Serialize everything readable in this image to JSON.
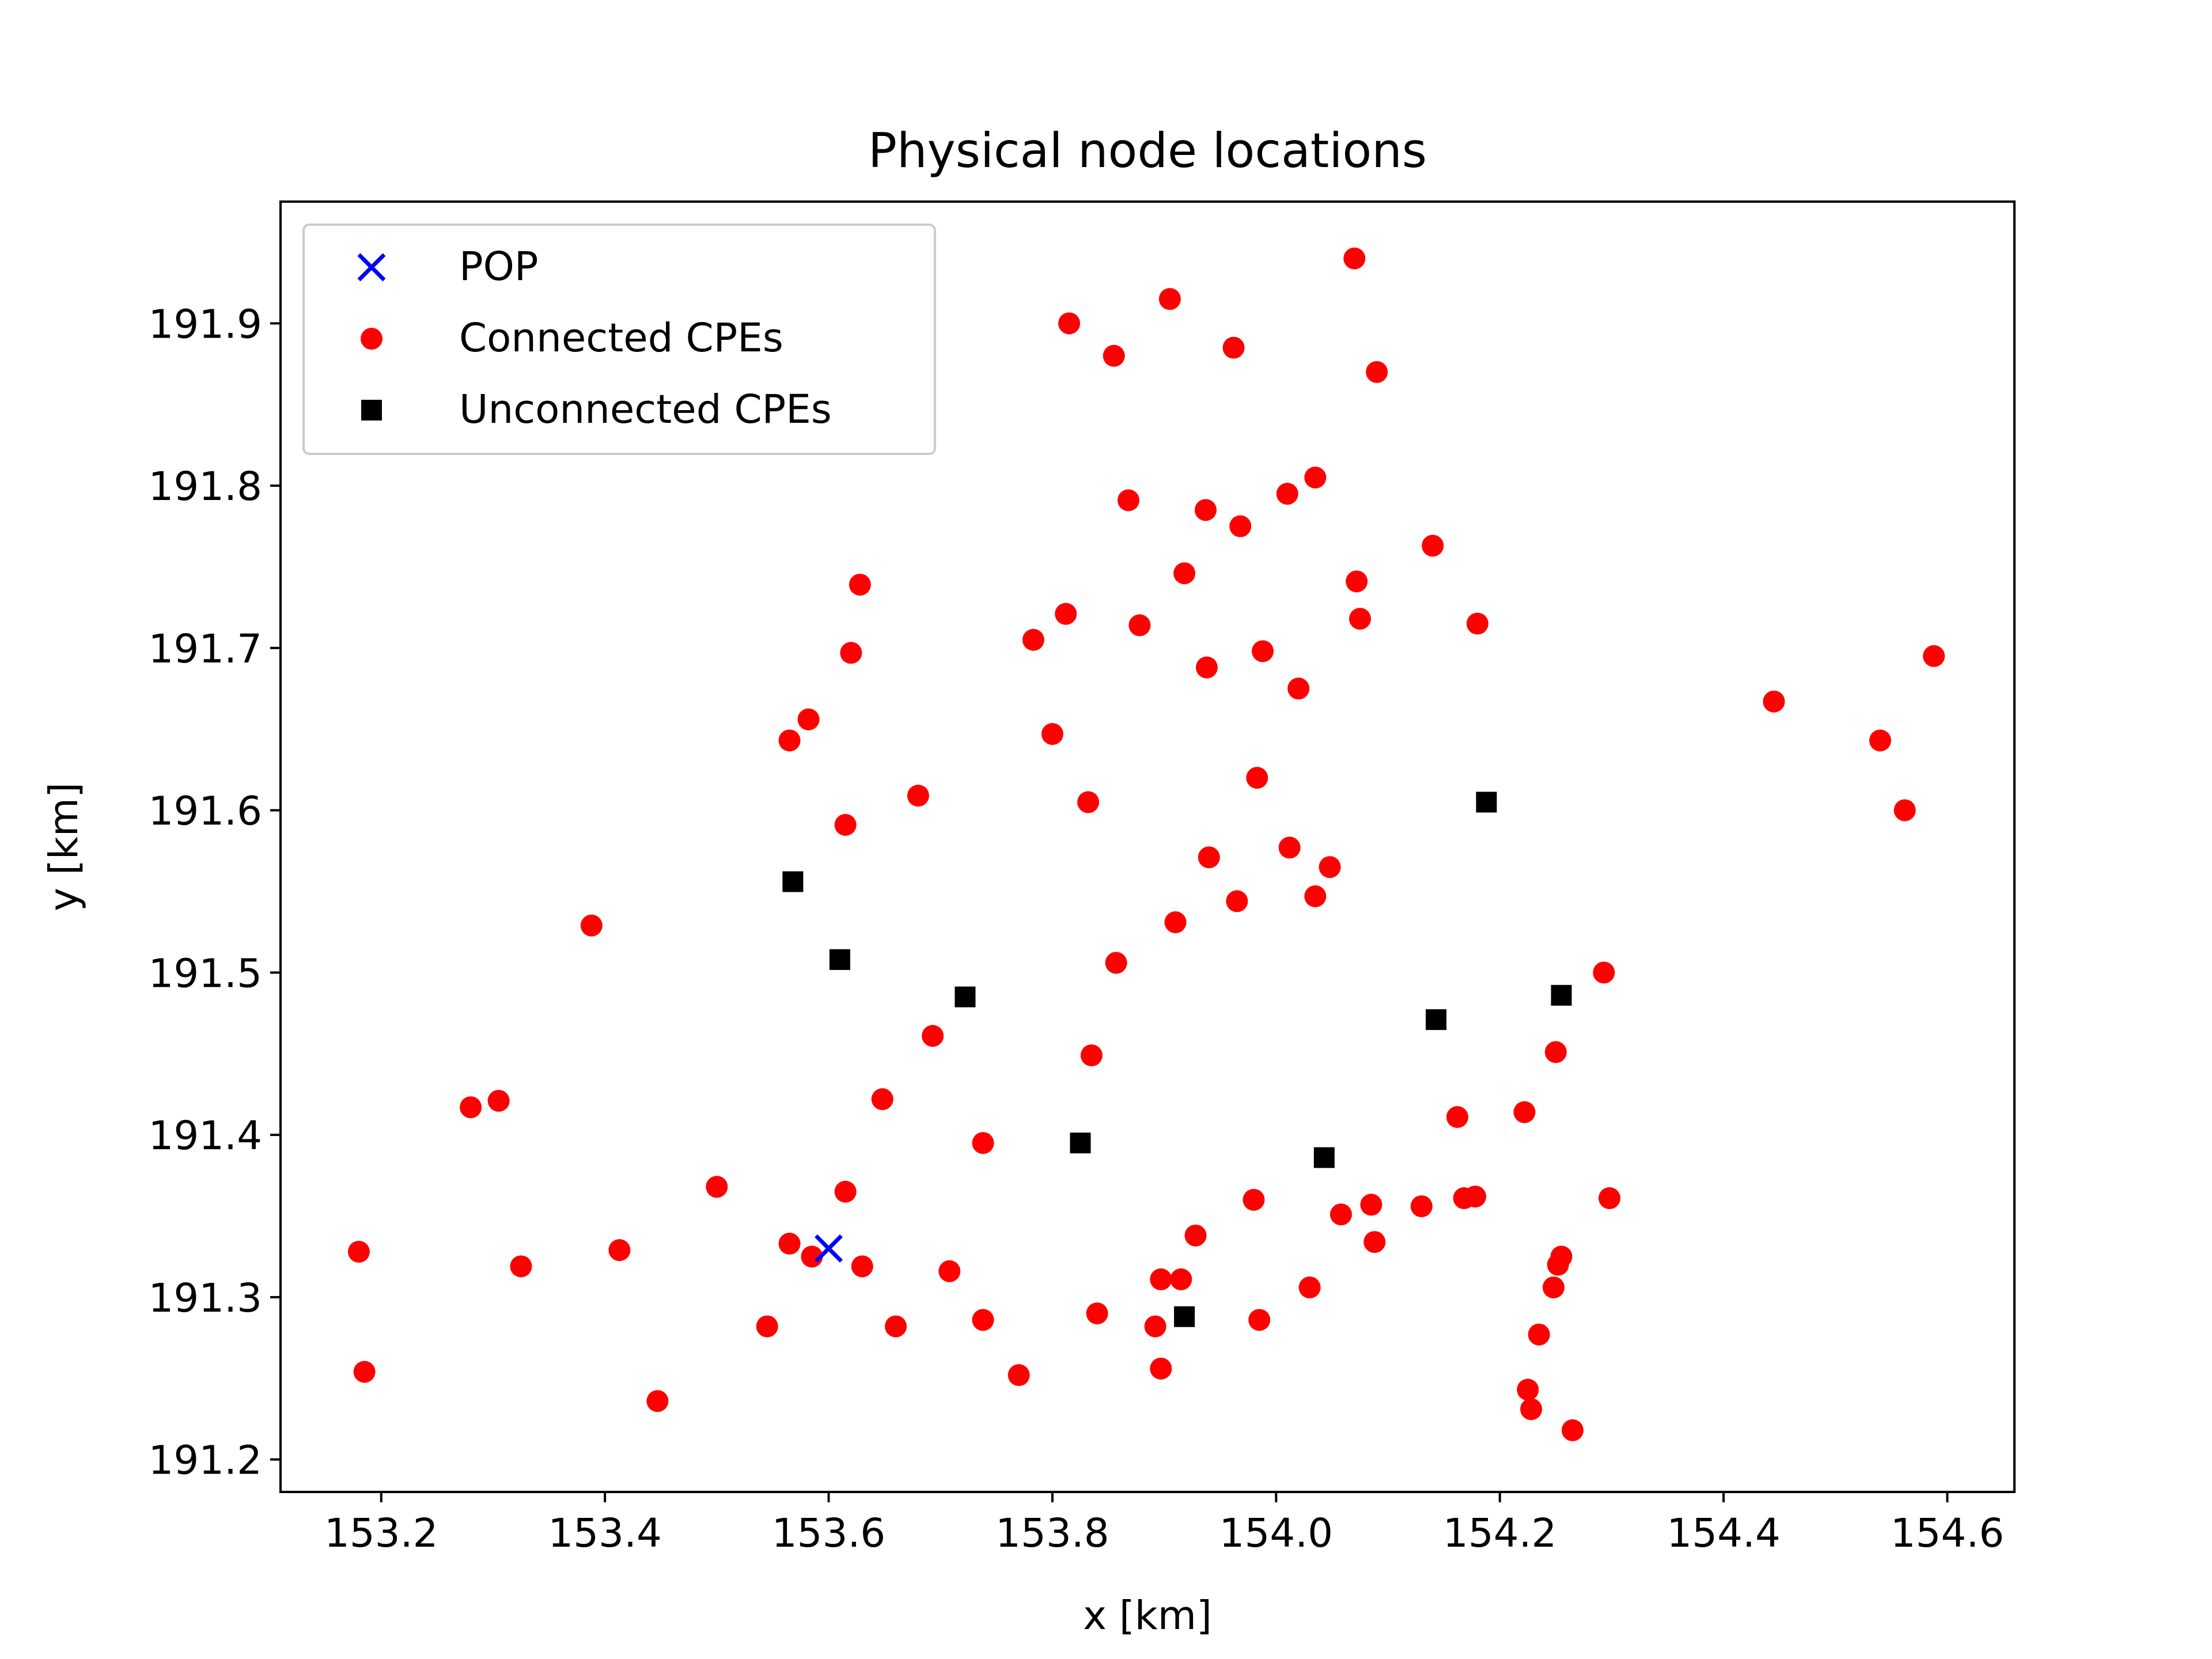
{
  "chart_data": {
    "type": "scatter",
    "title": "Physical node locations",
    "xlabel": "x [km]",
    "ylabel": "y [km]",
    "xlim": [
      153.11,
      154.66
    ],
    "ylim": [
      191.18,
      191.975
    ],
    "xticks": [
      153.2,
      153.4,
      153.6,
      153.8,
      154.0,
      154.2,
      154.4,
      154.6
    ],
    "yticks": [
      191.2,
      191.3,
      191.4,
      191.5,
      191.6,
      191.7,
      191.8,
      191.9
    ],
    "xtick_labels": [
      "153.2",
      "153.4",
      "153.6",
      "153.8",
      "154.0",
      "154.2",
      "154.4",
      "154.6"
    ],
    "ytick_labels": [
      "191.2",
      "191.3",
      "191.4",
      "191.5",
      "191.6",
      "191.7",
      "191.8",
      "191.9"
    ],
    "grid": false,
    "legend_position": "top-left",
    "series": [
      {
        "name": "POP",
        "marker": "x",
        "color": "#0000ff",
        "points": [
          [
            153.6,
            191.33
          ]
        ]
      },
      {
        "name": "Connected CPEs",
        "marker": "circle",
        "color": "#ff0000",
        "points": [
          [
            153.18,
            191.328
          ],
          [
            153.185,
            191.254
          ],
          [
            153.28,
            191.417
          ],
          [
            153.305,
            191.421
          ],
          [
            153.325,
            191.319
          ],
          [
            153.388,
            191.529
          ],
          [
            153.413,
            191.329
          ],
          [
            153.447,
            191.236
          ],
          [
            153.5,
            191.368
          ],
          [
            153.545,
            191.282
          ],
          [
            153.565,
            191.643
          ],
          [
            153.565,
            191.333
          ],
          [
            153.582,
            191.656
          ],
          [
            153.585,
            191.325
          ],
          [
            153.615,
            191.591
          ],
          [
            153.615,
            191.365
          ],
          [
            153.62,
            191.697
          ],
          [
            153.628,
            191.739
          ],
          [
            153.63,
            191.319
          ],
          [
            153.648,
            191.422
          ],
          [
            153.66,
            191.282
          ],
          [
            153.68,
            191.609
          ],
          [
            153.693,
            191.461
          ],
          [
            153.708,
            191.316
          ],
          [
            153.738,
            191.395
          ],
          [
            153.738,
            191.286
          ],
          [
            153.77,
            191.252
          ],
          [
            153.783,
            191.705
          ],
          [
            153.8,
            191.647
          ],
          [
            153.812,
            191.721
          ],
          [
            153.815,
            191.9
          ],
          [
            153.832,
            191.605
          ],
          [
            153.835,
            191.449
          ],
          [
            153.84,
            191.29
          ],
          [
            153.855,
            191.88
          ],
          [
            153.857,
            191.506
          ],
          [
            153.868,
            191.791
          ],
          [
            153.878,
            191.714
          ],
          [
            153.892,
            191.282
          ],
          [
            153.897,
            191.311
          ],
          [
            153.897,
            191.256
          ],
          [
            153.905,
            191.915
          ],
          [
            153.91,
            191.531
          ],
          [
            153.915,
            191.311
          ],
          [
            153.918,
            191.746
          ],
          [
            153.928,
            191.338
          ],
          [
            153.937,
            191.785
          ],
          [
            153.938,
            191.688
          ],
          [
            153.94,
            191.571
          ],
          [
            153.962,
            191.885
          ],
          [
            153.965,
            191.544
          ],
          [
            153.968,
            191.775
          ],
          [
            153.98,
            191.36
          ],
          [
            153.983,
            191.62
          ],
          [
            153.985,
            191.286
          ],
          [
            153.988,
            191.698
          ],
          [
            154.01,
            191.795
          ],
          [
            154.012,
            191.577
          ],
          [
            154.02,
            191.675
          ],
          [
            154.03,
            191.306
          ],
          [
            154.035,
            191.805
          ],
          [
            154.035,
            191.547
          ],
          [
            154.048,
            191.565
          ],
          [
            154.058,
            191.351
          ],
          [
            154.07,
            191.94
          ],
          [
            154.072,
            191.741
          ],
          [
            154.075,
            191.718
          ],
          [
            154.085,
            191.357
          ],
          [
            154.088,
            191.334
          ],
          [
            154.09,
            191.87
          ],
          [
            154.13,
            191.356
          ],
          [
            154.14,
            191.763
          ],
          [
            154.162,
            191.411
          ],
          [
            154.168,
            191.361
          ],
          [
            154.178,
            191.362
          ],
          [
            154.18,
            191.715
          ],
          [
            154.222,
            191.414
          ],
          [
            154.225,
            191.243
          ],
          [
            154.228,
            191.231
          ],
          [
            154.235,
            191.277
          ],
          [
            154.248,
            191.306
          ],
          [
            154.25,
            191.451
          ],
          [
            154.252,
            191.32
          ],
          [
            154.255,
            191.325
          ],
          [
            154.265,
            191.218
          ],
          [
            154.293,
            191.5
          ],
          [
            154.298,
            191.361
          ],
          [
            154.445,
            191.667
          ],
          [
            154.54,
            191.643
          ],
          [
            154.562,
            191.6
          ],
          [
            154.588,
            191.695
          ]
        ]
      },
      {
        "name": "Unconnected CPEs",
        "marker": "square",
        "color": "#000000",
        "points": [
          [
            153.568,
            191.556
          ],
          [
            153.61,
            191.508
          ],
          [
            153.722,
            191.485
          ],
          [
            153.825,
            191.395
          ],
          [
            153.918,
            191.288
          ],
          [
            154.043,
            191.386
          ],
          [
            154.143,
            191.471
          ],
          [
            154.188,
            191.605
          ],
          [
            154.255,
            191.486
          ]
        ]
      }
    ]
  }
}
